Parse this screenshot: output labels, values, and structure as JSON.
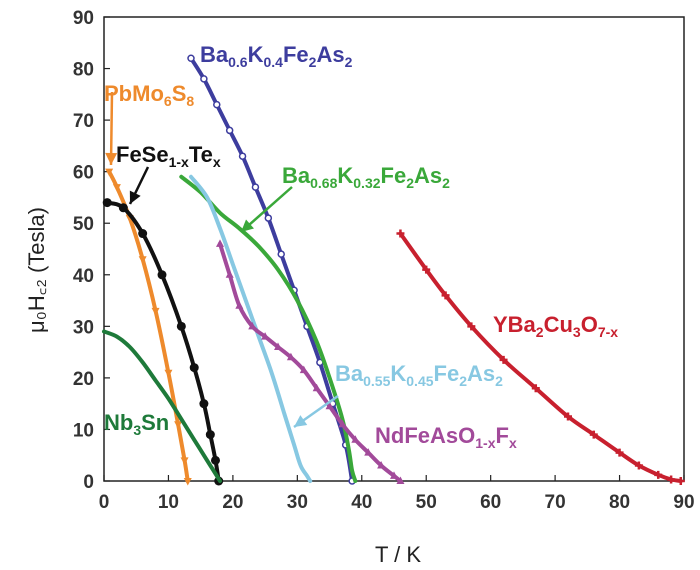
{
  "chart_data": {
    "type": "line",
    "title": "",
    "xlabel": "T / K",
    "ylabel": "μ₀H꜀₂ (Tesla)",
    "xlim": [
      0,
      90
    ],
    "ylim": [
      0,
      90
    ],
    "x_ticks": [
      "0",
      "10",
      "20",
      "30",
      "40",
      "50",
      "60",
      "70",
      "80",
      "90"
    ],
    "y_ticks": [
      "0",
      "10",
      "20",
      "30",
      "40",
      "50",
      "60",
      "70",
      "80",
      "90"
    ],
    "grid": false,
    "series": [
      {
        "name": "Ba0.6K0.4Fe2As2",
        "label_parts": [
          [
            "Ba",
            ""
          ],
          [
            "0.6",
            "sub"
          ],
          [
            "K",
            ""
          ],
          [
            "0.4",
            "sub"
          ],
          [
            "Fe",
            ""
          ],
          [
            "2",
            "sub"
          ],
          [
            "As",
            ""
          ],
          [
            "2",
            "sub"
          ]
        ],
        "color": "#3d3d9e",
        "marker": "open-circle",
        "x": [
          13.5,
          15.5,
          17.5,
          19.5,
          21.5,
          23.5,
          25.5,
          27.5,
          29.5,
          31.5,
          33.5,
          35.5,
          37.5,
          38.5
        ],
        "y": [
          82,
          78,
          73,
          68,
          63,
          57,
          51,
          44,
          37,
          30,
          23,
          15,
          7,
          0
        ]
      },
      {
        "name": "Ba0.68K0.32Fe2As2",
        "label_parts": [
          [
            "Ba",
            ""
          ],
          [
            "0.68",
            "sub"
          ],
          [
            "K",
            ""
          ],
          [
            "0.32",
            "sub"
          ],
          [
            "Fe",
            ""
          ],
          [
            "2",
            "sub"
          ],
          [
            "As",
            ""
          ],
          [
            "2",
            "sub"
          ]
        ],
        "color": "#3aa83a",
        "marker": "none",
        "x": [
          12,
          15,
          18,
          21,
          24,
          27,
          30,
          33,
          35,
          37,
          38,
          38.5,
          39
        ],
        "y": [
          59,
          56,
          52,
          49,
          45.5,
          41,
          35,
          27,
          20,
          12,
          6,
          2,
          0
        ]
      },
      {
        "name": "Ba0.55K0.45Fe2As2",
        "label_parts": [
          [
            "Ba",
            ""
          ],
          [
            "0.55",
            "sub"
          ],
          [
            "K",
            ""
          ],
          [
            "0.45",
            "sub"
          ],
          [
            "Fe",
            ""
          ],
          [
            "2",
            "sub"
          ],
          [
            "As",
            ""
          ],
          [
            "2",
            "sub"
          ]
        ],
        "color": "#87c8e2",
        "marker": "none",
        "x": [
          13.5,
          16,
          18,
          20,
          22,
          24,
          26,
          28,
          29.5,
          30.5,
          31.5,
          32
        ],
        "y": [
          59,
          55,
          49,
          42,
          35,
          28,
          21,
          13,
          7,
          3,
          1,
          0
        ]
      },
      {
        "name": "NdFeAsO1-xFx",
        "label_parts": [
          [
            "NdFeAsO",
            ""
          ],
          [
            "1-x",
            "sub"
          ],
          [
            "F",
            ""
          ],
          [
            "x",
            "sub"
          ]
        ],
        "color": "#a24a9a",
        "marker": "triangle",
        "x": [
          18,
          19.5,
          21,
          23,
          25,
          27,
          29,
          31,
          33,
          35,
          37,
          39,
          41,
          43,
          45,
          46
        ],
        "y": [
          46,
          40,
          34,
          30,
          28,
          26,
          24,
          21.5,
          18,
          14.5,
          11,
          8,
          5.5,
          3,
          1,
          0
        ]
      },
      {
        "name": "YBa2Cu3O7-x",
        "label_parts": [
          [
            "YBa",
            ""
          ],
          [
            "2",
            "sub"
          ],
          [
            "Cu",
            ""
          ],
          [
            "3",
            "sub"
          ],
          [
            "O",
            ""
          ],
          [
            "7-x",
            "sub"
          ]
        ],
        "color": "#c8202e",
        "marker": "plus",
        "x": [
          46,
          50,
          53,
          57,
          62,
          67,
          72,
          76,
          80,
          83,
          86,
          88,
          89.5
        ],
        "y": [
          48,
          41,
          36,
          30,
          23.5,
          18,
          12.5,
          9,
          5.5,
          3,
          1.2,
          0.3,
          0
        ]
      },
      {
        "name": "PbMo6S8",
        "label_parts": [
          [
            "PbMo",
            ""
          ],
          [
            "6",
            "sub"
          ],
          [
            "S",
            ""
          ],
          [
            "8",
            "sub"
          ]
        ],
        "color": "#ee8a2c",
        "marker": "triangle-down",
        "x": [
          0.8,
          2,
          4,
          6,
          8,
          10,
          11.5,
          12.5,
          13
        ],
        "y": [
          60,
          57,
          51,
          43,
          33,
          21,
          11,
          4,
          0
        ]
      },
      {
        "name": "FeSe1-xTex",
        "label_parts": [
          [
            "FeSe",
            ""
          ],
          [
            "1-x",
            "sub"
          ],
          [
            "Te",
            ""
          ],
          [
            "x",
            "sub"
          ]
        ],
        "color": "#111111",
        "marker": "filled-circle",
        "x": [
          0.5,
          3,
          6,
          9,
          12,
          14,
          15.5,
          16.5,
          17.3,
          17.8
        ],
        "y": [
          54,
          53,
          48,
          40,
          30,
          22,
          15,
          9,
          4,
          0
        ]
      },
      {
        "name": "Nb3Sn",
        "label_parts": [
          [
            "Nb",
            ""
          ],
          [
            "3",
            "sub"
          ],
          [
            "Sn",
            ""
          ]
        ],
        "color": "#1e7a3a",
        "marker": "none",
        "x": [
          0,
          2,
          4,
          6,
          8,
          10,
          12,
          14,
          16,
          17.5,
          18
        ],
        "y": [
          29,
          28,
          26,
          23,
          19.5,
          16,
          12,
          8,
          4,
          1,
          0
        ]
      }
    ]
  }
}
